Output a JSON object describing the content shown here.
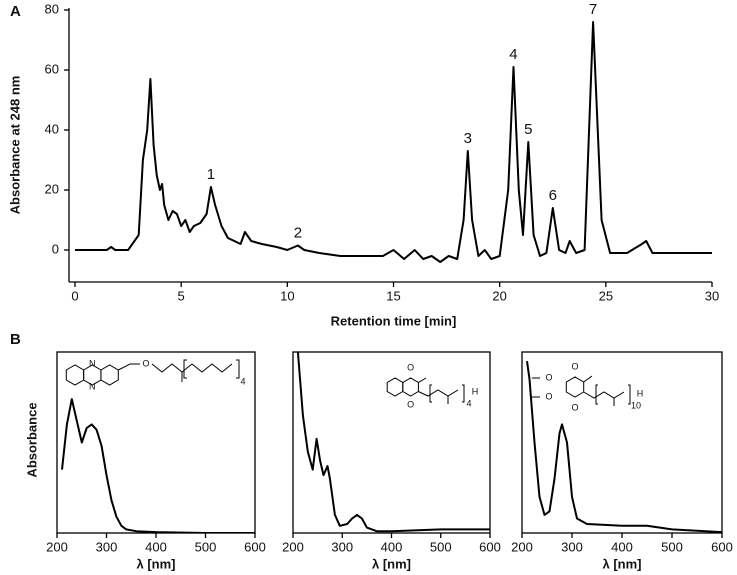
{
  "chart_data": [
    {
      "type": "line",
      "panel_label": "A",
      "x_label": "Retention time [min]",
      "y_label": "Absorbance at 248 nm",
      "xlim": [
        0,
        30
      ],
      "xticks": [
        0,
        5,
        10,
        15,
        20,
        25,
        30
      ],
      "ylim": [
        -10,
        80
      ],
      "yticks": [
        0,
        20,
        40,
        60,
        80
      ],
      "color": "#000000",
      "x": [
        0,
        1.5,
        1.7,
        1.9,
        2.5,
        3.0,
        3.2,
        3.4,
        3.55,
        3.7,
        3.85,
        4.0,
        4.1,
        4.2,
        4.4,
        4.6,
        4.8,
        5.0,
        5.2,
        5.4,
        5.6,
        5.9,
        6.2,
        6.4,
        6.6,
        6.9,
        7.2,
        7.5,
        7.8,
        8.0,
        8.3,
        8.8,
        9.5,
        10.0,
        10.5,
        10.8,
        11.5,
        12.5,
        13.5,
        14.5,
        15.0,
        15.5,
        16.0,
        16.4,
        16.8,
        17.2,
        17.6,
        18.0,
        18.3,
        18.5,
        18.7,
        19.0,
        19.3,
        19.6,
        20.0,
        20.4,
        20.65,
        20.9,
        21.1,
        21.35,
        21.6,
        21.9,
        22.2,
        22.5,
        22.8,
        23.1,
        23.3,
        23.6,
        24.0,
        24.4,
        24.8,
        25.2,
        26.0,
        26.7,
        26.9,
        27.2,
        28,
        30
      ],
      "values": [
        0,
        0,
        1,
        0,
        0,
        5,
        30,
        40,
        57,
        35,
        25,
        20,
        22,
        15,
        10,
        13,
        12,
        8,
        10,
        6,
        8,
        9,
        12,
        21,
        15,
        8,
        4,
        3,
        2,
        6,
        3,
        2,
        1,
        0,
        1.5,
        0,
        -1,
        -2,
        -2,
        -2,
        0,
        -3,
        0,
        -3,
        -2,
        -4,
        -2,
        -3,
        10,
        33,
        10,
        -2,
        0,
        -3,
        -2,
        20,
        61,
        20,
        5,
        36,
        5,
        -2,
        -1,
        14,
        0,
        -1,
        3,
        -1,
        0,
        76,
        10,
        -1,
        -1,
        2,
        3,
        -1,
        -1,
        -1
      ],
      "annotations": [
        {
          "label": "1",
          "x": 6.4,
          "y": 21
        },
        {
          "label": "2",
          "x": 10.5,
          "y": 1.5
        },
        {
          "label": "3",
          "x": 18.5,
          "y": 33
        },
        {
          "label": "4",
          "x": 20.65,
          "y": 61
        },
        {
          "label": "5",
          "x": 21.35,
          "y": 36
        },
        {
          "label": "6",
          "x": 22.5,
          "y": 14
        },
        {
          "label": "7",
          "x": 24.4,
          "y": 76
        }
      ]
    },
    {
      "type": "line",
      "panel_label": "B",
      "x_label": "λ [nm]",
      "y_label": "Absorbance",
      "xlim": [
        200,
        600
      ],
      "xticks": [
        200,
        300,
        400,
        500,
        600
      ],
      "ylim": [
        0,
        1
      ],
      "color": "#000000",
      "x": [
        210,
        220,
        230,
        240,
        250,
        260,
        270,
        280,
        290,
        300,
        310,
        320,
        330,
        340,
        360,
        400,
        500,
        600
      ],
      "values": [
        0.35,
        0.6,
        0.74,
        0.62,
        0.5,
        0.58,
        0.6,
        0.57,
        0.48,
        0.32,
        0.18,
        0.09,
        0.04,
        0.02,
        0.01,
        0.005,
        0,
        0
      ],
      "inset_labels": [
        "N",
        "N",
        "O",
        "4"
      ]
    },
    {
      "type": "line",
      "x_label": "λ [nm]",
      "xlim": [
        200,
        600
      ],
      "xticks": [
        200,
        300,
        400,
        500,
        600
      ],
      "ylim": [
        0,
        1
      ],
      "color": "#000000",
      "x": [
        210,
        220,
        230,
        240,
        248,
        255,
        262,
        270,
        275,
        285,
        295,
        310,
        320,
        330,
        340,
        350,
        370,
        400,
        500,
        600
      ],
      "values": [
        1.0,
        0.65,
        0.45,
        0.35,
        0.52,
        0.4,
        0.32,
        0.37,
        0.3,
        0.1,
        0.04,
        0.05,
        0.08,
        0.1,
        0.08,
        0.03,
        0.01,
        0.01,
        0.02,
        0.02
      ],
      "inset_labels": [
        "O",
        "O",
        "4",
        "H"
      ]
    },
    {
      "type": "line",
      "x_label": "λ [nm]",
      "xlim": [
        200,
        600
      ],
      "xticks": [
        200,
        300,
        400,
        500,
        600
      ],
      "ylim": [
        0,
        1
      ],
      "color": "#000000",
      "x": [
        210,
        215,
        225,
        235,
        245,
        255,
        265,
        275,
        280,
        290,
        300,
        310,
        330,
        400,
        450,
        500,
        600
      ],
      "values": [
        0.95,
        0.85,
        0.5,
        0.2,
        0.1,
        0.12,
        0.3,
        0.55,
        0.6,
        0.5,
        0.2,
        0.08,
        0.05,
        0.04,
        0.04,
        0.02,
        0.005
      ],
      "inset_labels": [
        "O",
        "O",
        "O",
        "O",
        "10",
        "H"
      ]
    }
  ]
}
